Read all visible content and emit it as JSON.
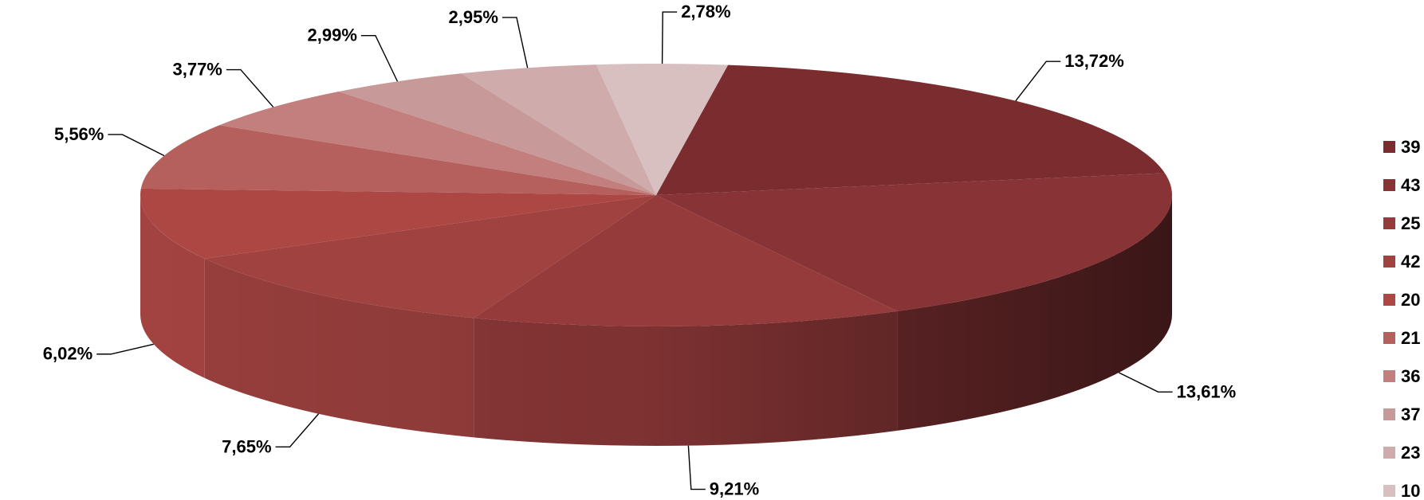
{
  "chart_data": {
    "type": "pie",
    "style": "3d",
    "legend_position": "right",
    "series": [
      {
        "name": "39",
        "value": 13.72,
        "label": "13,72%",
        "color": "#7a2c2e"
      },
      {
        "name": "43",
        "value": 13.61,
        "label": "13,61%",
        "color": "#883436"
      },
      {
        "name": "25",
        "value": 9.21,
        "label": "9,21%",
        "color": "#953b3b"
      },
      {
        "name": "42",
        "value": 7.65,
        "label": "7,65%",
        "color": "#a04240"
      },
      {
        "name": "20",
        "value": 6.02,
        "label": "6,02%",
        "color": "#ac4744"
      },
      {
        "name": "21",
        "value": 5.56,
        "label": "5,56%",
        "color": "#b5605d"
      },
      {
        "name": "36",
        "value": 3.77,
        "label": "3,77%",
        "color": "#c27f7d"
      },
      {
        "name": "37",
        "value": 2.99,
        "label": "2,99%",
        "color": "#c79998"
      },
      {
        "name": "23",
        "value": 2.95,
        "label": "2,95%",
        "color": "#d0abab"
      },
      {
        "name": "10",
        "value": 2.78,
        "label": "2,78%",
        "color": "#d8bfc0"
      }
    ]
  }
}
